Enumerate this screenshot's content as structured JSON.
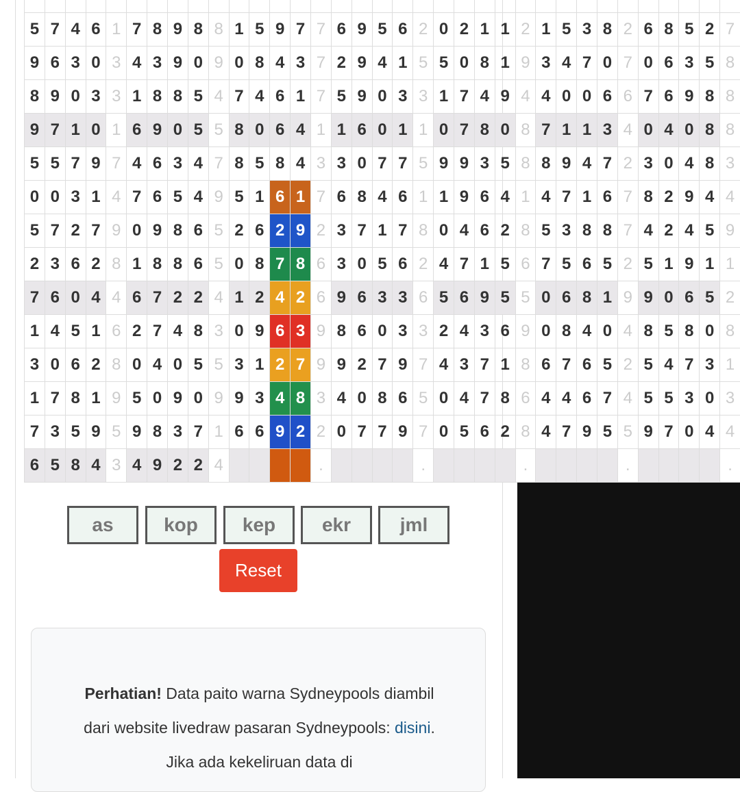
{
  "table": {
    "rows": [
      [
        5,
        7,
        4,
        6,
        1,
        7,
        8,
        9,
        8,
        8,
        1,
        5,
        9,
        7,
        7,
        6,
        9,
        5,
        6,
        2,
        0,
        2,
        1,
        1,
        2,
        1,
        5,
        3,
        8,
        2,
        6,
        8,
        5,
        2,
        7
      ],
      [
        9,
        6,
        3,
        0,
        3,
        4,
        3,
        9,
        0,
        9,
        0,
        8,
        4,
        3,
        7,
        2,
        9,
        4,
        1,
        5,
        5,
        0,
        8,
        1,
        9,
        3,
        4,
        7,
        0,
        7,
        0,
        6,
        3,
        5,
        8
      ],
      [
        8,
        9,
        0,
        3,
        3,
        1,
        8,
        8,
        5,
        4,
        7,
        4,
        6,
        1,
        7,
        5,
        9,
        0,
        3,
        3,
        1,
        7,
        4,
        9,
        4,
        4,
        0,
        0,
        6,
        6,
        7,
        6,
        9,
        8,
        8
      ],
      [
        9,
        7,
        1,
        0,
        1,
        6,
        9,
        0,
        5,
        5,
        8,
        0,
        6,
        4,
        1,
        1,
        6,
        0,
        1,
        1,
        0,
        7,
        8,
        0,
        8,
        7,
        1,
        1,
        3,
        4,
        0,
        4,
        0,
        8,
        8
      ],
      [
        5,
        5,
        7,
        9,
        7,
        4,
        6,
        3,
        4,
        7,
        8,
        5,
        8,
        4,
        3,
        3,
        0,
        7,
        7,
        5,
        9,
        9,
        3,
        5,
        8,
        8,
        9,
        4,
        7,
        2,
        3,
        0,
        4,
        8,
        3
      ],
      [
        0,
        0,
        3,
        1,
        4,
        7,
        6,
        5,
        4,
        9,
        5,
        1,
        6,
        1,
        7,
        6,
        8,
        4,
        6,
        1,
        1,
        9,
        6,
        4,
        1,
        4,
        7,
        1,
        6,
        7,
        8,
        2,
        9,
        4,
        4
      ],
      [
        5,
        7,
        2,
        7,
        9,
        0,
        9,
        8,
        6,
        5,
        2,
        6,
        2,
        9,
        2,
        3,
        7,
        1,
        7,
        8,
        0,
        4,
        6,
        2,
        8,
        5,
        3,
        8,
        8,
        7,
        4,
        2,
        4,
        5,
        9
      ],
      [
        2,
        3,
        6,
        2,
        8,
        1,
        8,
        8,
        6,
        5,
        0,
        8,
        7,
        8,
        6,
        3,
        0,
        5,
        6,
        2,
        4,
        7,
        1,
        5,
        6,
        7,
        5,
        6,
        5,
        2,
        5,
        1,
        9,
        1,
        1
      ],
      [
        7,
        6,
        0,
        4,
        4,
        6,
        7,
        2,
        2,
        4,
        1,
        2,
        4,
        2,
        6,
        9,
        6,
        3,
        3,
        6,
        5,
        6,
        9,
        5,
        5,
        0,
        6,
        8,
        1,
        9,
        9,
        0,
        6,
        5,
        2
      ],
      [
        1,
        4,
        5,
        1,
        6,
        2,
        7,
        4,
        8,
        3,
        0,
        9,
        6,
        3,
        9,
        8,
        6,
        0,
        3,
        3,
        2,
        4,
        3,
        6,
        9,
        0,
        8,
        4,
        0,
        4,
        8,
        5,
        8,
        0,
        8
      ],
      [
        3,
        0,
        6,
        2,
        8,
        0,
        4,
        0,
        5,
        5,
        3,
        1,
        2,
        7,
        9,
        9,
        2,
        7,
        9,
        7,
        4,
        3,
        7,
        1,
        8,
        6,
        7,
        6,
        5,
        2,
        5,
        4,
        7,
        3,
        1
      ],
      [
        1,
        7,
        8,
        1,
        9,
        5,
        0,
        9,
        0,
        9,
        9,
        3,
        4,
        8,
        3,
        4,
        0,
        8,
        6,
        5,
        0,
        4,
        7,
        8,
        6,
        4,
        4,
        6,
        7,
        4,
        5,
        5,
        3,
        0,
        3
      ],
      [
        7,
        3,
        5,
        9,
        5,
        9,
        8,
        3,
        7,
        1,
        6,
        6,
        9,
        2,
        2,
        0,
        7,
        7,
        9,
        7,
        0,
        5,
        6,
        2,
        8,
        4,
        7,
        9,
        5,
        5,
        9,
        7,
        0,
        4,
        4
      ],
      [
        6,
        5,
        8,
        4,
        3,
        4,
        9,
        2,
        2,
        4,
        null,
        null,
        null,
        null,
        ".",
        null,
        null,
        null,
        null,
        ".",
        null,
        null,
        null,
        null,
        ".",
        null,
        null,
        null,
        null,
        ".",
        null,
        null,
        null,
        null,
        "."
      ]
    ]
  },
  "buttons": [
    "as",
    "kop",
    "kep",
    "ekr",
    "jml"
  ],
  "reset": "Reset",
  "notice": {
    "bold": "Perhatian!",
    "text": " Data paito warna Sydneypools diambil dari website livedraw pasaran Sydneypools: ",
    "link": "disini",
    "after": ". Jika ada kekeliruan data di"
  }
}
